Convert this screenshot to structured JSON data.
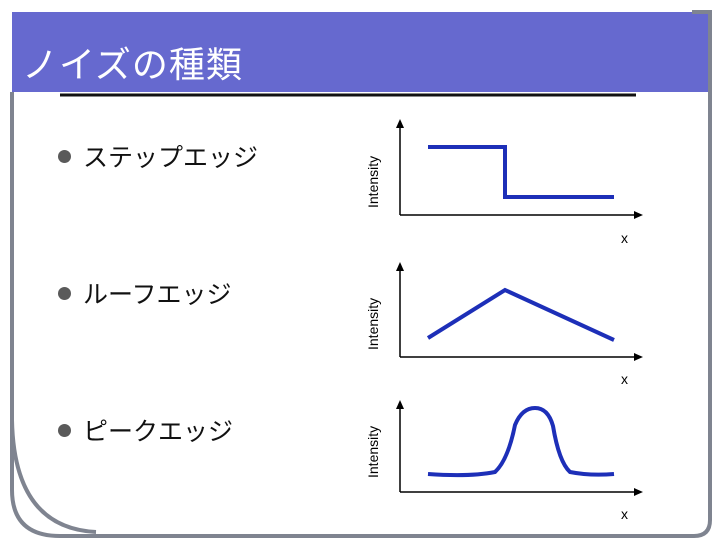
{
  "slide": {
    "title": "ノイズの種類",
    "colors": {
      "header": "#6669cf",
      "frame": "#7f8490",
      "underline": "#111111",
      "curve": "#1d2fb8",
      "bullet": "#5a5a5a"
    },
    "bullets": [
      {
        "label": "ステップエッジ"
      },
      {
        "label": "ルーフエッジ"
      },
      {
        "label": "ピークエッジ"
      }
    ],
    "plots": [
      {
        "type": "step",
        "ylabel": "Intensity",
        "xlabel": "x"
      },
      {
        "type": "roof",
        "ylabel": "Intensity",
        "xlabel": "x"
      },
      {
        "type": "peak",
        "ylabel": "Intensity",
        "xlabel": "x"
      }
    ]
  }
}
